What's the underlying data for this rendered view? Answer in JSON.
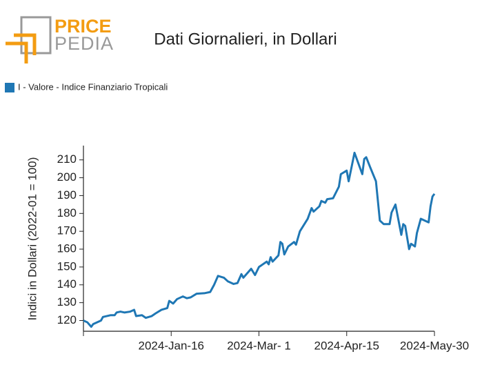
{
  "logo": {
    "top": "PRICE",
    "bottom": "PEDIA"
  },
  "chart_data": {
    "type": "line",
    "title": "Dati Giornalieri, in Dollari",
    "ylabel": "Indici in Dollari (2022-01 = 100)",
    "x": [
      "2023-12-02",
      "2023-12-04",
      "2023-12-06",
      "2023-12-07",
      "2023-12-11",
      "2023-12-12",
      "2023-12-16",
      "2023-12-18",
      "2023-12-19",
      "2023-12-21",
      "2023-12-23",
      "2023-12-26",
      "2023-12-28",
      "2023-12-29",
      "2024-01-01",
      "2024-01-03",
      "2024-01-06",
      "2024-01-08",
      "2024-01-11",
      "2024-01-14",
      "2024-01-15",
      "2024-01-17",
      "2024-01-19",
      "2024-01-22",
      "2024-01-24",
      "2024-01-26",
      "2024-01-29",
      "2024-02-02",
      "2024-02-05",
      "2024-02-07",
      "2024-02-09",
      "2024-02-12",
      "2024-02-14",
      "2024-02-17",
      "2024-02-19",
      "2024-02-21",
      "2024-02-22",
      "2024-02-26",
      "2024-02-28",
      "2024-03-01",
      "2024-03-05",
      "2024-03-06",
      "2024-03-07",
      "2024-03-08",
      "2024-03-11",
      "2024-03-12",
      "2024-03-13",
      "2024-03-14",
      "2024-03-16",
      "2024-03-19",
      "2024-03-20",
      "2024-03-22",
      "2024-03-26",
      "2024-03-28",
      "2024-03-29",
      "2024-04-01",
      "2024-04-02",
      "2024-04-04",
      "2024-04-05",
      "2024-04-08",
      "2024-04-11",
      "2024-04-12",
      "2024-04-15",
      "2024-04-16",
      "2024-04-19",
      "2024-04-21",
      "2024-04-23",
      "2024-04-24",
      "2024-04-25",
      "2024-04-27",
      "2024-04-30",
      "2024-05-02",
      "2024-05-04",
      "2024-05-07",
      "2024-05-08",
      "2024-05-10",
      "2024-05-13",
      "2024-05-14",
      "2024-05-15",
      "2024-05-17",
      "2024-05-18",
      "2024-05-20",
      "2024-05-21",
      "2024-05-23",
      "2024-05-27",
      "2024-05-28",
      "2024-05-29",
      "2024-05-30"
    ],
    "series": [
      {
        "name": "I - Valore - Indice Finanziario Tropicali",
        "color": "#1f77b4",
        "values": [
          120,
          119,
          116.5,
          118,
          120,
          122,
          123,
          123,
          124.5,
          125,
          124.5,
          125,
          126,
          122.5,
          123,
          121.5,
          122.5,
          124,
          126,
          127,
          131,
          129.5,
          132,
          133.5,
          132.5,
          133,
          135,
          135.3,
          136,
          140,
          145,
          144,
          142,
          140.5,
          141,
          146,
          144,
          149,
          145.5,
          150,
          153,
          151.5,
          155.5,
          153,
          156.5,
          164,
          163,
          157,
          161.5,
          164,
          162.5,
          170,
          177,
          183,
          181,
          184,
          187,
          186,
          188,
          188.5,
          195,
          202,
          204,
          198,
          214,
          208,
          202,
          210.5,
          211.5,
          206,
          198,
          176,
          174,
          174,
          180.5,
          185,
          168,
          174,
          173,
          160,
          163,
          161.5,
          169,
          177,
          175,
          184,
          189.5,
          191
        ]
      }
    ],
    "xlim": [
      "2023-12-02",
      "2024-05-30"
    ],
    "xticks": [
      {
        "value": "2024-01-16",
        "label": "2024-Jan-16"
      },
      {
        "value": "2024-03-01",
        "label": "2024-Mar- 1"
      },
      {
        "value": "2024-04-15",
        "label": "2024-Apr-15"
      },
      {
        "value": "2024-05-30",
        "label": "2024-May-30"
      }
    ],
    "ylim": [
      114,
      218
    ],
    "yticks": [
      120,
      130,
      140,
      150,
      160,
      170,
      180,
      190,
      200,
      210
    ],
    "grid": false,
    "legend": "top-left"
  }
}
